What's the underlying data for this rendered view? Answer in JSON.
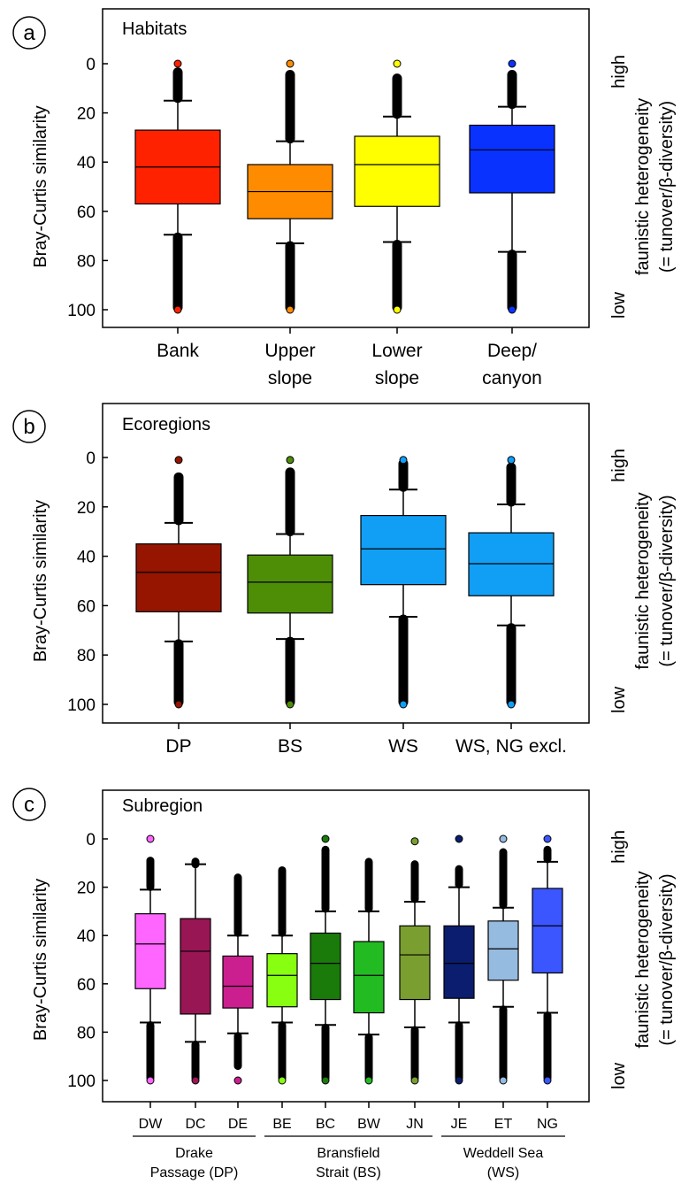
{
  "chart_data": [
    {
      "panel_label": "a",
      "type": "boxplot",
      "panel_title": "Habitats",
      "ylabel": "Bray-Curtis similarity",
      "y_inverted": true,
      "ylim": [
        0,
        100
      ],
      "yticks": [
        "0",
        "20",
        "40",
        "60",
        "80",
        "100"
      ],
      "right_label_top": "high",
      "right_label_bottom": "low",
      "right_caption_1": "faunistic heterogeneity",
      "right_caption_2": "(= tunover/β-diversity)",
      "categories": [
        [
          "Bank"
        ],
        [
          "Upper",
          "slope"
        ],
        [
          "Lower",
          "slope"
        ],
        [
          "Deep/",
          "canyon"
        ]
      ],
      "boxes": [
        {
          "color": "#ff2200",
          "q1": 27,
          "median": 42,
          "q3": 57,
          "whisker_low": 15,
          "whisker_high": 69.5,
          "outlier_low_from": 3.5,
          "outlier_high_to": 99,
          "min_point": 0,
          "max_point": 100
        },
        {
          "color": "#ff8c00",
          "q1": 41,
          "median": 52,
          "q3": 63,
          "whisker_low": 31.5,
          "whisker_high": 73,
          "outlier_low_from": 4.5,
          "outlier_high_to": 99,
          "min_point": 0,
          "max_point": 100
        },
        {
          "color": "#ffff00",
          "q1": 29.5,
          "median": 41,
          "q3": 58,
          "whisker_low": 21.5,
          "whisker_high": 72.5,
          "outlier_low_from": 6,
          "outlier_high_to": 99,
          "min_point": 0,
          "max_point": 100
        },
        {
          "color": "#0a32ff",
          "q1": 25,
          "median": 35,
          "q3": 52.5,
          "whisker_low": 17.5,
          "whisker_high": 76.5,
          "outlier_low_from": 4.5,
          "outlier_high_to": 99,
          "min_point": 0,
          "max_point": 100
        }
      ]
    },
    {
      "panel_label": "b",
      "type": "boxplot",
      "panel_title": "Ecoregions",
      "ylabel": "Bray-Curtis similarity",
      "y_inverted": true,
      "ylim": [
        0,
        100
      ],
      "yticks": [
        "0",
        "20",
        "40",
        "60",
        "80",
        "100"
      ],
      "right_label_top": "high",
      "right_label_bottom": "low",
      "right_caption_1": "faunistic heterogeneity",
      "right_caption_2": "(= tunover/β-diversity)",
      "categories": [
        [
          "DP"
        ],
        [
          "BS"
        ],
        [
          "WS"
        ],
        [
          "WS, NG excl."
        ]
      ],
      "boxes": [
        {
          "color": "#951500",
          "q1": 35,
          "median": 46.5,
          "q3": 62.5,
          "whisker_low": 26.5,
          "whisker_high": 74.5,
          "outlier_low_from": 8,
          "outlier_high_to": 99,
          "min_point": 1,
          "max_point": 100
        },
        {
          "color": "#4e8e06",
          "q1": 39.5,
          "median": 50.5,
          "q3": 63,
          "whisker_low": 31,
          "whisker_high": 73.5,
          "outlier_low_from": 6,
          "outlier_high_to": 99,
          "min_point": 1,
          "max_point": 100
        },
        {
          "color": "#119ff5",
          "q1": 23.5,
          "median": 37,
          "q3": 51.5,
          "whisker_low": 13,
          "whisker_high": 64.5,
          "outlier_low_from": 2.5,
          "outlier_high_to": 99,
          "min_point": 1,
          "max_point": 100
        },
        {
          "color": "#119ff5",
          "q1": 30.5,
          "median": 43,
          "q3": 56,
          "whisker_low": 19,
          "whisker_high": 68,
          "outlier_low_from": 4,
          "outlier_high_to": 99,
          "min_point": 1,
          "max_point": 100
        }
      ]
    },
    {
      "panel_label": "c",
      "type": "boxplot",
      "panel_title": "Subregion",
      "ylabel": "Bray-Curtis similarity",
      "y_inverted": true,
      "ylim": [
        0,
        100
      ],
      "yticks": [
        "0",
        "20",
        "40",
        "60",
        "80",
        "100"
      ],
      "right_label_top": "high",
      "right_label_bottom": "low",
      "right_caption_1": "faunistic heterogeneity",
      "right_caption_2": "(= tunover/β-diversity)",
      "categories": [
        [
          "DW"
        ],
        [
          "DC"
        ],
        [
          "DE"
        ],
        [
          "BE"
        ],
        [
          "BC"
        ],
        [
          "BW"
        ],
        [
          "JN"
        ],
        [
          "JE"
        ],
        [
          "ET"
        ],
        [
          "NG"
        ]
      ],
      "groups": [
        {
          "line1": "Drake",
          "line2": "Passage (DP)",
          "from": 0,
          "to": 2
        },
        {
          "line1": "Bransfield",
          "line2": "Strait (BS)",
          "from": 3,
          "to": 6
        },
        {
          "line1": "Weddell Sea",
          "line2": "(WS)",
          "from": 7,
          "to": 9
        }
      ],
      "boxes": [
        {
          "color": "#ff66ff",
          "q1": 31,
          "median": 43.5,
          "q3": 62,
          "whisker_low": 21,
          "whisker_high": 76,
          "outlier_low_from": 9,
          "outlier_high_to": 99,
          "min_point": 0,
          "max_point": 100
        },
        {
          "color": "#991655",
          "q1": 33,
          "median": 46.5,
          "q3": 72.5,
          "whisker_low": 10.5,
          "whisker_high": 84,
          "outlier_low_from": 10.5,
          "outlier_high_to": 99,
          "min_point": null,
          "max_point": 100
        },
        {
          "color": "#cc1f8f",
          "q1": 48.5,
          "median": 61,
          "q3": 70,
          "whisker_low": 40,
          "whisker_high": 80.5,
          "outlier_low_from": 16,
          "outlier_high_to": 94,
          "min_point": null,
          "max_point": 100
        },
        {
          "color": "#88ff11",
          "q1": 47.5,
          "median": 56.5,
          "q3": 69.5,
          "whisker_low": 40,
          "whisker_high": 76,
          "outlier_low_from": 13,
          "outlier_high_to": 99,
          "min_point": null,
          "max_point": 100
        },
        {
          "color": "#1a7a0a",
          "q1": 39,
          "median": 51.5,
          "q3": 66.5,
          "whisker_low": 30,
          "whisker_high": 77,
          "outlier_low_from": 4.5,
          "outlier_high_to": 99,
          "min_point": 0,
          "max_point": 100
        },
        {
          "color": "#22bb22",
          "q1": 42.5,
          "median": 56.5,
          "q3": 72,
          "whisker_low": 30,
          "whisker_high": 81,
          "outlier_low_from": 9.5,
          "outlier_high_to": 99,
          "min_point": null,
          "max_point": 100
        },
        {
          "color": "#7a9e30",
          "q1": 36,
          "median": 48,
          "q3": 66.5,
          "whisker_low": 26,
          "whisker_high": 78,
          "outlier_low_from": 10.5,
          "outlier_high_to": 99,
          "min_point": 1,
          "max_point": 100
        },
        {
          "color": "#0b1d6e",
          "q1": 36,
          "median": 51.5,
          "q3": 66,
          "whisker_low": 20,
          "whisker_high": 76,
          "outlier_low_from": 12.5,
          "outlier_high_to": 99,
          "min_point": 0,
          "max_point": 100
        },
        {
          "color": "#96bbe0",
          "q1": 34,
          "median": 45.5,
          "q3": 58.5,
          "whisker_low": 28.5,
          "whisker_high": 69.5,
          "outlier_low_from": 5.5,
          "outlier_high_to": 99,
          "min_point": 0,
          "max_point": 100
        },
        {
          "color": "#3b55ff",
          "q1": 20.5,
          "median": 36,
          "q3": 55.5,
          "whisker_low": 9.5,
          "whisker_high": 72,
          "outlier_low_from": 4.5,
          "outlier_high_to": 99,
          "min_point": 0,
          "max_point": 100
        }
      ]
    }
  ]
}
